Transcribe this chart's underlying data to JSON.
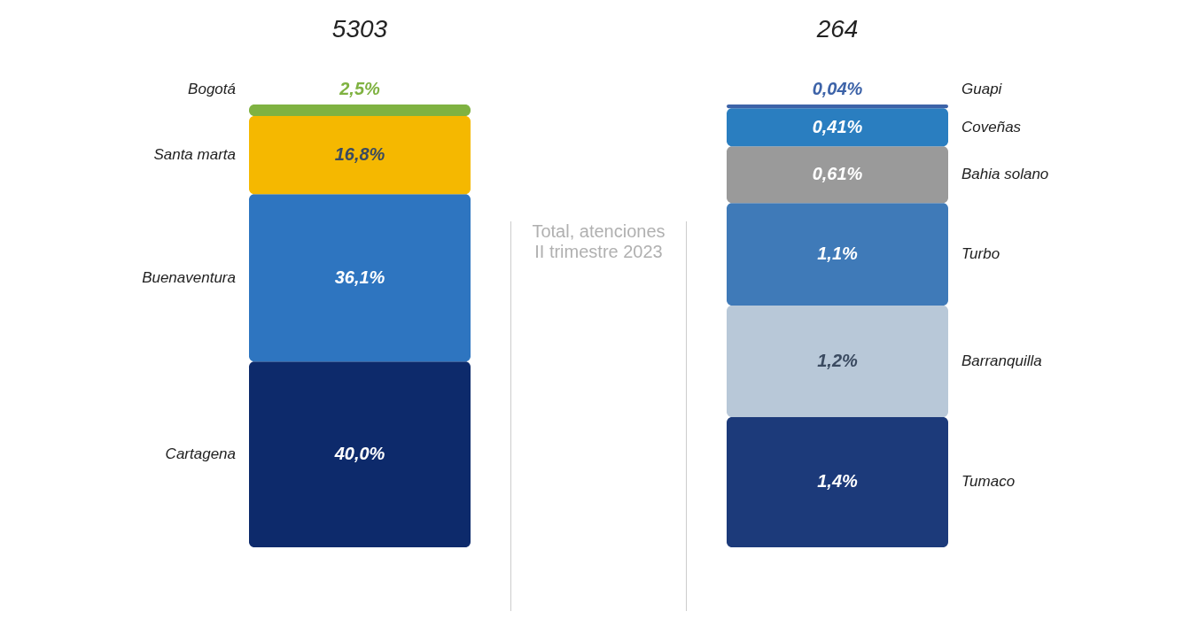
{
  "chart_data": [
    {
      "type": "bar",
      "stacked": true,
      "categories": [
        null
      ],
      "tick_labels": false,
      "legend": false,
      "title": "5303",
      "annotations": [
        "Total, atenciones\nII trimestre 2023"
      ],
      "series": [
        {
          "name": "Cartagena",
          "color": "#0d2a6b",
          "values": [
            40.0
          ],
          "value_labels": [
            "40,0%"
          ]
        },
        {
          "name": "Buenaventura",
          "color": "#2e75c0",
          "values": [
            36.1
          ],
          "value_labels": [
            "36,1%"
          ]
        },
        {
          "name": "Santa marta",
          "color": "#f5b800",
          "values": [
            16.8
          ],
          "value_labels": [
            "16,8%"
          ]
        },
        {
          "name": "Bogotá",
          "color": "#7fb241",
          "values": [
            2.5
          ],
          "value_labels": [
            "2,5%"
          ]
        }
      ]
    },
    {
      "type": "bar",
      "stacked": true,
      "categories": [
        null
      ],
      "tick_labels": false,
      "legend": false,
      "title": "264",
      "series": [
        {
          "name": "Tumaco",
          "color": "#1c3a7a",
          "values": [
            1.4
          ],
          "value_labels": [
            "1,4%"
          ]
        },
        {
          "name": "Barranquilla",
          "color": "#b8c8d8",
          "values": [
            1.2
          ],
          "value_labels": [
            "1,2%"
          ]
        },
        {
          "name": "Turbo",
          "color": "#3f7ab8",
          "values": [
            1.1
          ],
          "value_labels": [
            "1,1%"
          ]
        },
        {
          "name": "Bahia solano",
          "color": "#9a9a9a",
          "values": [
            0.61
          ],
          "value_labels": [
            "0,61%"
          ]
        },
        {
          "name": "Coveñas",
          "color": "#2a7ec0",
          "values": [
            0.41
          ],
          "value_labels": [
            "0,41%"
          ]
        },
        {
          "name": "Guapi",
          "color": "#3d63a8",
          "values": [
            0.04
          ],
          "value_labels": [
            "0,04%"
          ]
        }
      ]
    }
  ]
}
